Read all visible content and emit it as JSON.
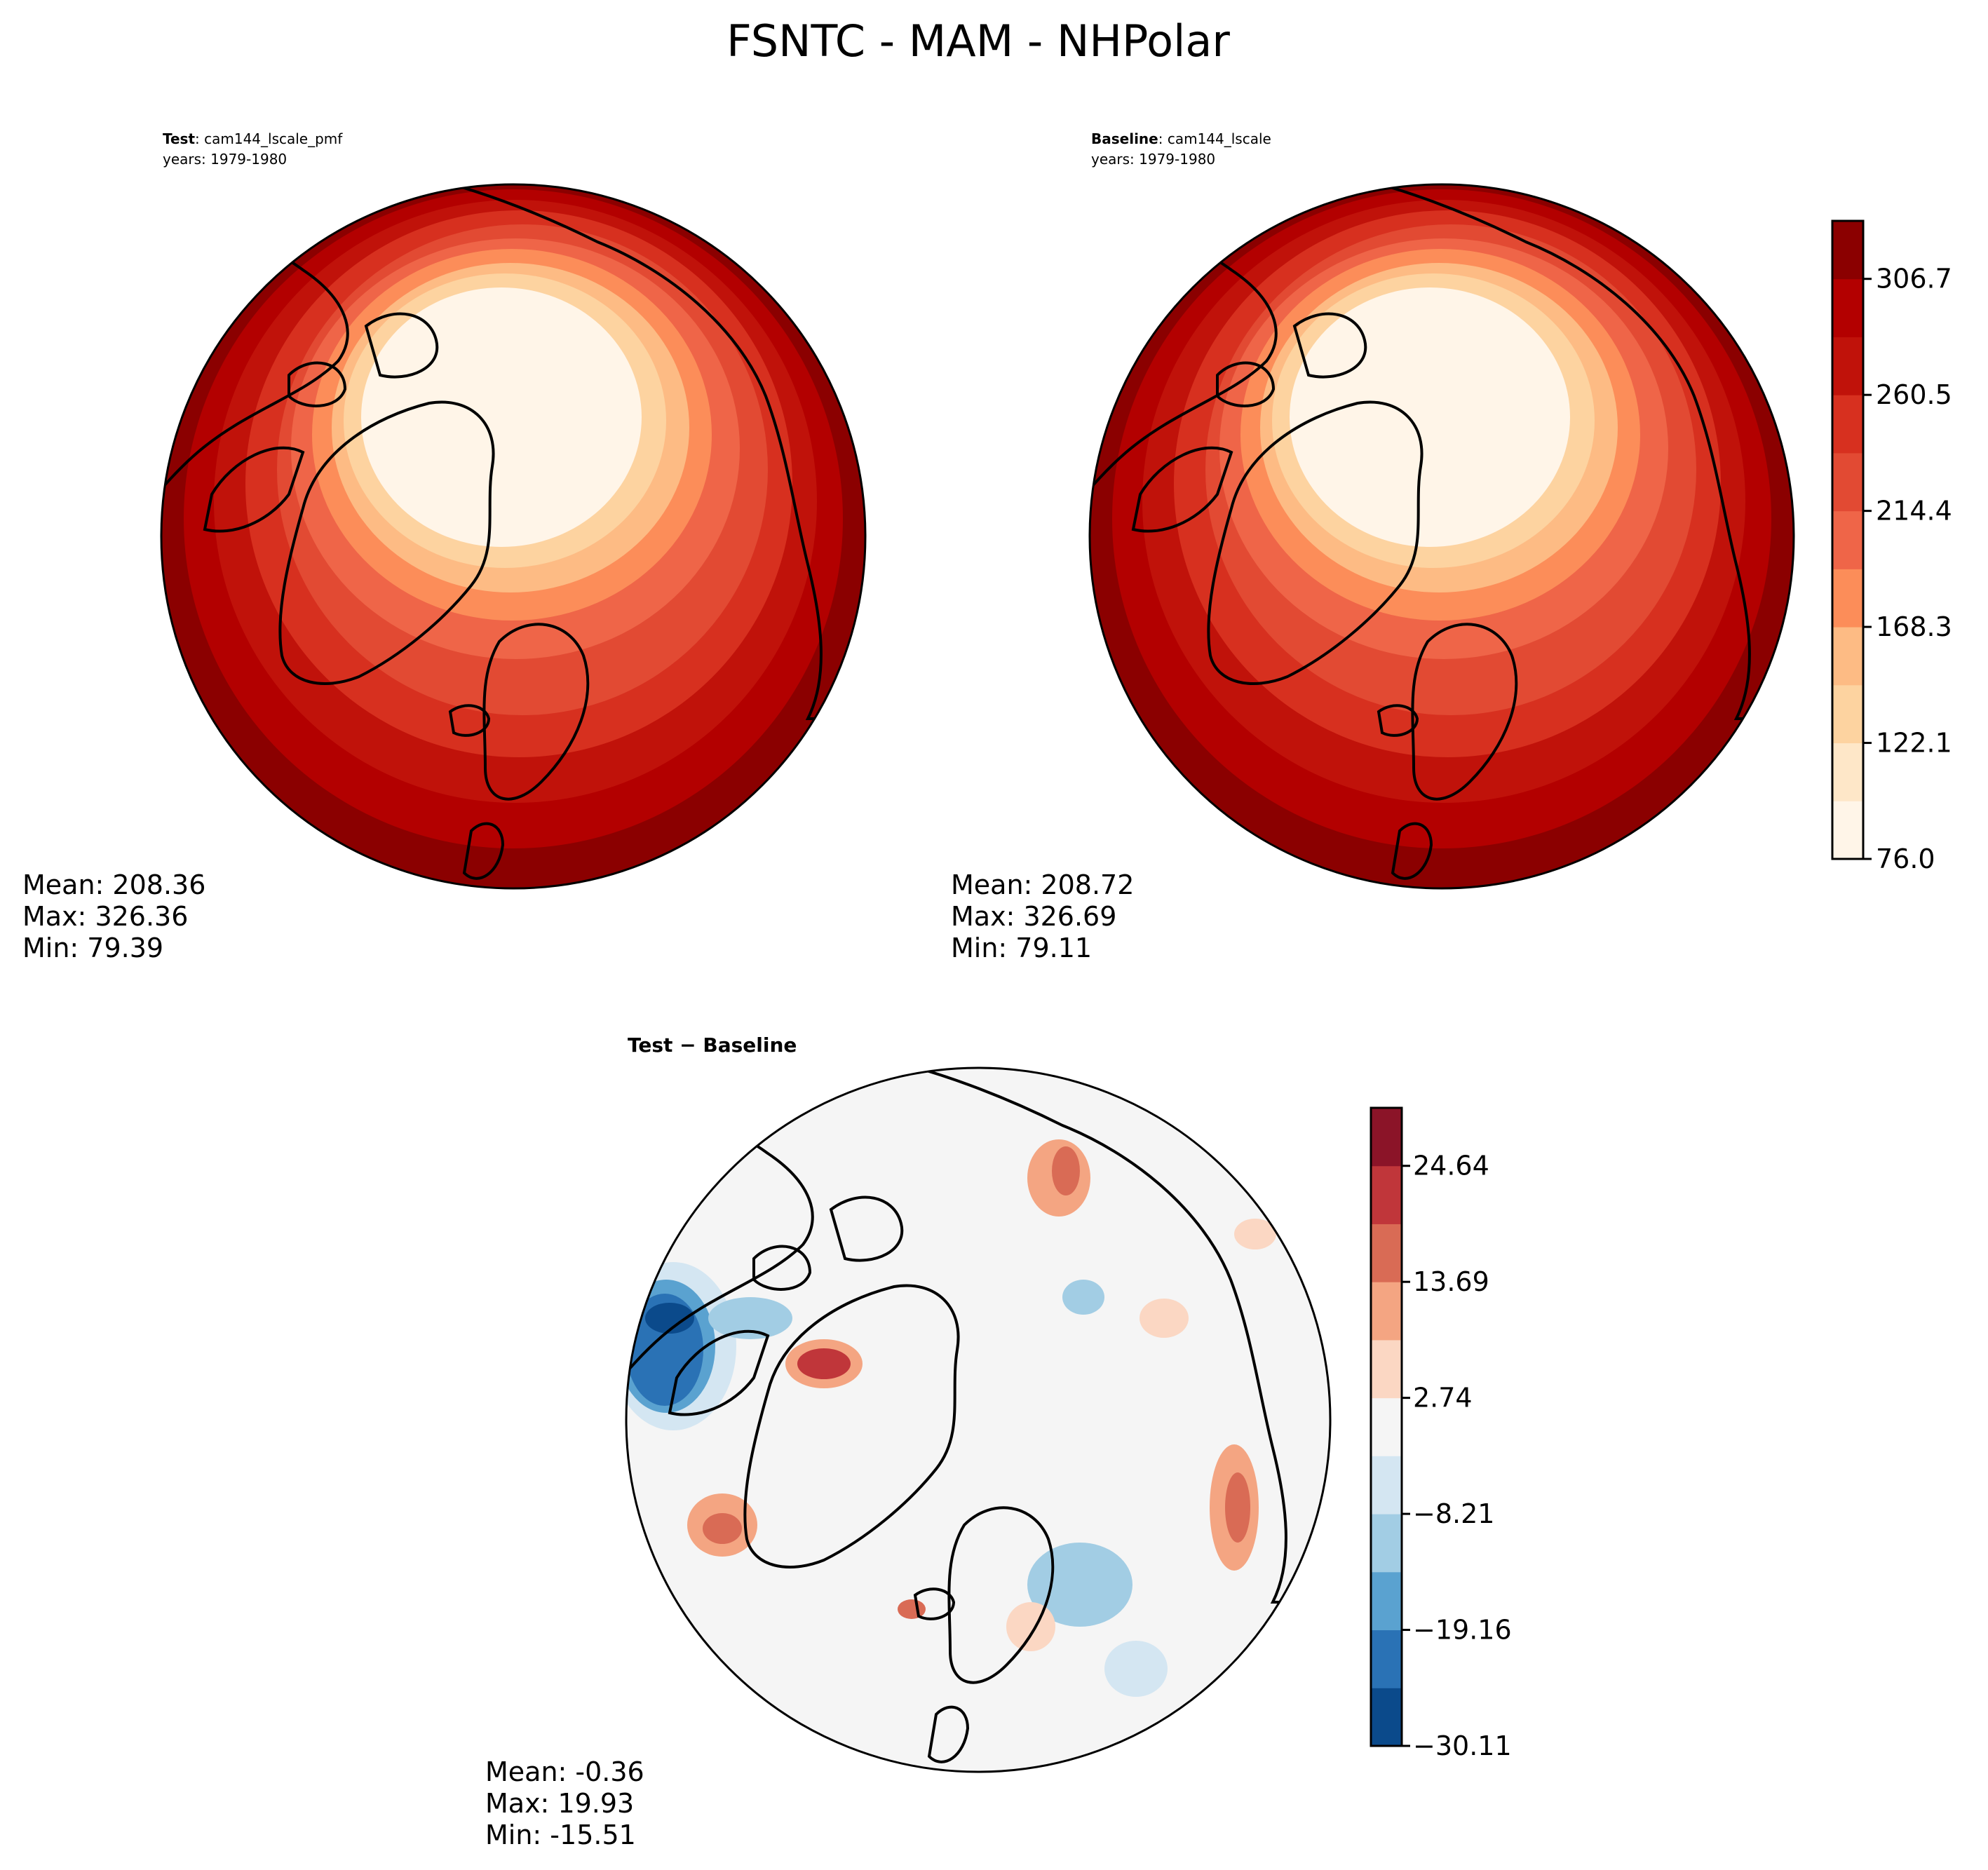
{
  "title": "FSNTC - MAM - NHPolar",
  "panels": [
    {
      "id": "test",
      "label_bold": "Test",
      "label_rest": ": cam144_lscale_pmf",
      "years": "years: 1979-1980",
      "stats": {
        "mean": "Mean: 208.36",
        "max": "Max: 326.36",
        "min": "Min: 79.39"
      }
    },
    {
      "id": "baseline",
      "label_bold": "Baseline",
      "label_rest": ": cam144_lscale",
      "years": "years: 1979-1980",
      "stats": {
        "mean": "Mean: 208.72",
        "max": "Max: 326.69",
        "min": "Min: 79.11"
      }
    },
    {
      "id": "diff",
      "label_bold": "Test − Baseline",
      "label_rest": "",
      "years": "",
      "stats": {
        "mean": "Mean: -0.36",
        "max": "Max: 19.93",
        "min": "Min: -15.51"
      }
    }
  ],
  "colorbar_main": {
    "tick_labels": [
      "76.0",
      "122.1",
      "168.3",
      "214.4",
      "260.5",
      "306.7"
    ],
    "colors": [
      "#fff5e8",
      "#fee7c8",
      "#fdd3a0",
      "#fdbb84",
      "#fc8d59",
      "#ef6548",
      "#e24a33",
      "#d7301f",
      "#c0120a",
      "#b30000",
      "#8b0000"
    ]
  },
  "colorbar_diff": {
    "tick_labels": [
      "−30.11",
      "−19.16",
      "−8.21",
      "2.74",
      "13.69",
      "24.64"
    ],
    "colors": [
      "#0b4a8b",
      "#2a72b5",
      "#5aa2d0",
      "#a2cde4",
      "#d4e6f2",
      "#f5f5f5",
      "#fbd7c3",
      "#f4a582",
      "#d96b55",
      "#c0363a",
      "#8b1428"
    ]
  }
}
